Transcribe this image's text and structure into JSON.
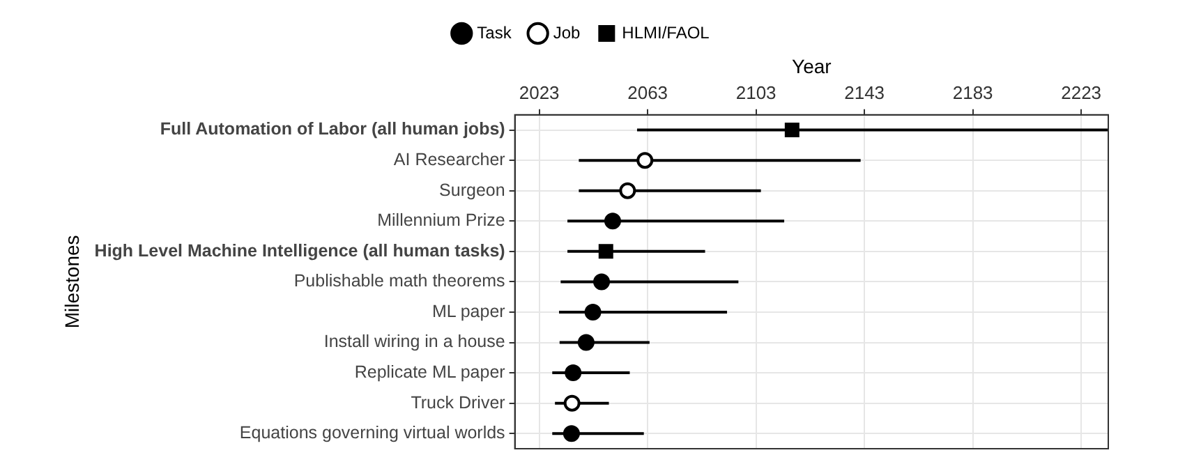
{
  "chart_data": {
    "type": "scatter",
    "orientation": "horizontal",
    "xlabel": "Year",
    "ylabel": "Milestones",
    "categories": [
      "Full Automation of Labor (all human jobs)",
      "AI Researcher",
      "Surgeon",
      "Millennium Prize",
      "High Level Machine Intelligence (all human tasks)",
      "Publishable math theorems",
      "ML paper",
      "Install wiring in a house",
      "Replicate ML paper",
      "Truck Driver",
      "Equations governing virtual worlds"
    ],
    "xlim": [
      2014,
      2233
    ],
    "xticks": [
      2023,
      2063,
      2103,
      2143,
      2183,
      2223
    ],
    "grid": true,
    "legend": "top",
    "series": [
      {
        "name": "Task",
        "color": "#000000",
        "marker": "circle",
        "values": [
          null,
          null,
          null,
          2050.1,
          null,
          2046,
          2042.8,
          2040.3,
          2035.5,
          null,
          2034.9
        ],
        "errors": [
          null,
          null,
          null,
          [
            2033.4,
            2113.4
          ],
          null,
          [
            2030.9,
            2096.5
          ],
          [
            2030.3,
            2092.3
          ],
          [
            2030.5,
            2063.7
          ],
          [
            2027.8,
            2056.4
          ],
          null,
          [
            2027.8,
            2061.6
          ]
        ]
      },
      {
        "name": "Job",
        "color": "#000000",
        "marker": "circle",
        "values": [
          null,
          2062,
          2055.6,
          null,
          null,
          null,
          null,
          null,
          null,
          2035.1,
          null
        ],
        "errors": [
          null,
          [
            2037.6,
            2141.6
          ],
          [
            2037.6,
            2104.8
          ],
          null,
          null,
          null,
          null,
          null,
          null,
          [
            2028.8,
            2048.7
          ],
          null
        ]
      },
      {
        "name": "HLMI/FAOL",
        "color": "#000000",
        "marker": "square",
        "values": [
          2116.3,
          null,
          null,
          null,
          2047.6,
          null,
          null,
          null,
          null,
          null,
          null
        ],
        "errors": [
          [
            2059.1,
            2233
          ],
          null,
          null,
          null,
          [
            2033.4,
            2084.2
          ],
          null,
          null,
          null,
          null,
          null,
          null
        ]
      }
    ]
  }
}
